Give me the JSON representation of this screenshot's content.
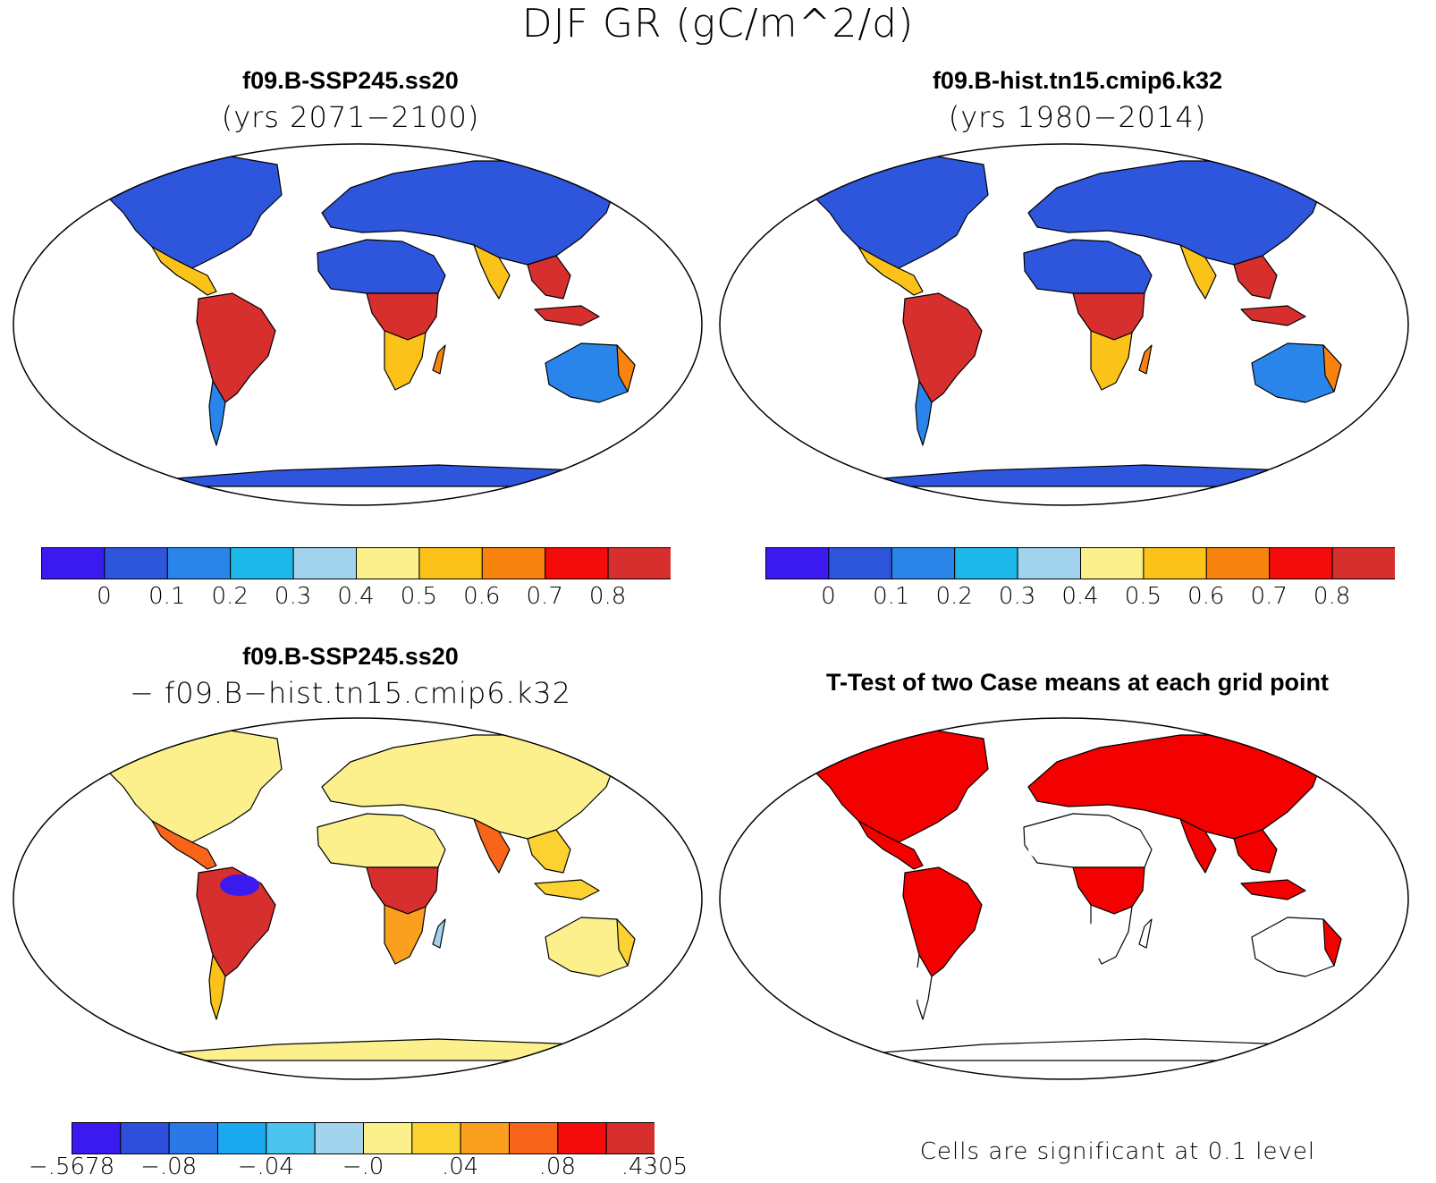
{
  "figure_title": "DJF GR (gC/m^2/d)",
  "panels": [
    {
      "title": "f09.B-SSP245.ss20",
      "subtitle": "(yrs 2071−2100)"
    },
    {
      "title": "f09.B-hist.tn15.cmip6.k32",
      "subtitle": "(yrs 1980−2014)"
    },
    {
      "title": "f09.B-SSP245.ss20",
      "subtitle": "− f09.B−hist.tn15.cmip6.k32"
    },
    {
      "title": "T-Test of two Case means at each grid point",
      "footnote": "Cells are significant at 0.1 level"
    }
  ],
  "colorbar_main": {
    "colors": [
      "#3b1af0",
      "#2e56dc",
      "#2a85ea",
      "#1cb8ea",
      "#a2d4ee",
      "#fbf08c",
      "#fbc21a",
      "#f8830f",
      "#f40b0b",
      "#d72e2e"
    ],
    "labels": [
      "0",
      "0.1",
      "0.2",
      "0.3",
      "0.4",
      "0.5",
      "0.6",
      "0.7",
      "0.8"
    ]
  },
  "colorbar_diff": {
    "colors": [
      "#3b1af0",
      "#2e4fdc",
      "#2c78e6",
      "#1aa8ef",
      "#4cc2ee",
      "#a2d4ee",
      "#fbf08c",
      "#fbd232",
      "#fba01e",
      "#f8641a",
      "#f40b0b",
      "#d72e2e"
    ],
    "labels": [
      "−.5678",
      "−.08",
      "−.04",
      "−.0",
      ".04",
      ".08",
      ".4305"
    ]
  },
  "map_colors": {
    "ocean": "#ffffff",
    "significant": "#f50000"
  },
  "land_fills": {
    "ssp": {
      "north_america": "#2e56dc",
      "central_america": "#fbc21a",
      "south_america": "#d72e2e",
      "south_america_south": "#2a85ea",
      "europe_asia": "#2e56dc",
      "south_asia": "#fbc21a",
      "southeast_asia": "#d72e2e",
      "africa_north": "#2e56dc",
      "africa_central": "#d72e2e",
      "africa_south": "#fbc21a",
      "madagascar": "#f8830f",
      "australia": "#2a85ea",
      "australia_east": "#f8830f",
      "antarctica": "#2e56dc"
    },
    "hist": {
      "north_america": "#2e56dc",
      "central_america": "#fbc21a",
      "south_america": "#d72e2e",
      "south_america_south": "#2a85ea",
      "europe_asia": "#2e56dc",
      "south_asia": "#fbc21a",
      "southeast_asia": "#d72e2e",
      "africa_north": "#2e56dc",
      "africa_central": "#d72e2e",
      "africa_south": "#fbc21a",
      "madagascar": "#f8830f",
      "australia": "#2a85ea",
      "australia_east": "#f8830f",
      "antarctica": "#2e56dc"
    },
    "diff": {
      "north_america": "#fbf08c",
      "central_america": "#f8641a",
      "south_america": "#d72e2e",
      "south_america_south": "#fbc21a",
      "europe_asia": "#fbf08c",
      "south_asia": "#f8641a",
      "southeast_asia": "#fbd232",
      "africa_north": "#fbf08c",
      "africa_central": "#d72e2e",
      "africa_south": "#fba01e",
      "madagascar": "#a2d4ee",
      "australia": "#fbf08c",
      "australia_east": "#fbd232",
      "antarctica": "#fbf08c",
      "amazon_patch": "#3b1af0"
    },
    "ttest": {
      "north_america": "#f50000",
      "central_america": "#f50000",
      "south_america": "#f50000",
      "south_america_south": "#ffffff",
      "europe_asia": "#f50000",
      "south_asia": "#f50000",
      "southeast_asia": "#f50000",
      "africa_north": "#ffffff",
      "africa_central": "#f50000",
      "africa_south": "#ffffff",
      "madagascar": "#ffffff",
      "australia": "#ffffff",
      "australia_east": "#f50000",
      "antarctica": "#ffffff"
    }
  }
}
